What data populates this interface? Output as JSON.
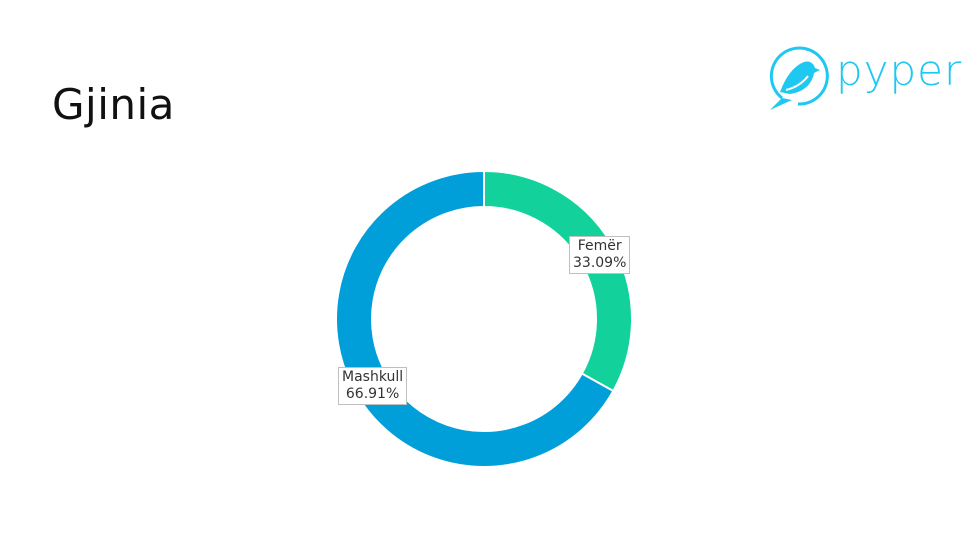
{
  "header": {
    "title": "Gjinia",
    "logo_text": "pyper",
    "logo_icon": "bird-in-circle-icon",
    "logo_color": "#1ec8f0"
  },
  "chart_data": {
    "type": "pie",
    "donut": true,
    "title": "",
    "categories": [
      "Femër",
      "Mashkull"
    ],
    "values": [
      33.09,
      66.91
    ],
    "labels": [
      "33.09%",
      "66.91%"
    ],
    "colors": [
      "#12d19b",
      "#009fda"
    ],
    "start": "top, clockwise",
    "legend": "none"
  }
}
